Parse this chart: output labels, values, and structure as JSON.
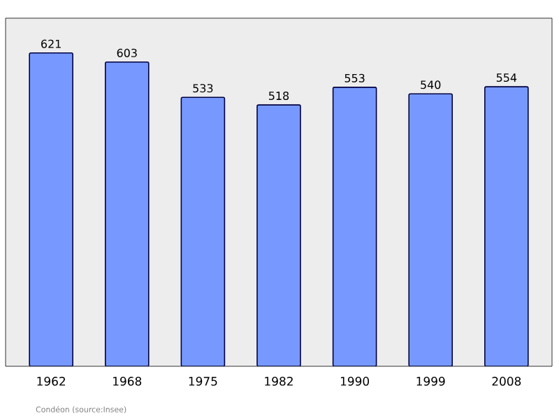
{
  "chart_data": {
    "type": "bar",
    "categories": [
      "1962",
      "1968",
      "1975",
      "1982",
      "1990",
      "1999",
      "2008"
    ],
    "values": [
      621,
      603,
      533,
      518,
      553,
      540,
      554
    ],
    "color": "#7799ff",
    "ylim": [
      0,
      690
    ],
    "data_labels": true,
    "annotations": [
      "Condéon    (source:Insee)"
    ]
  }
}
